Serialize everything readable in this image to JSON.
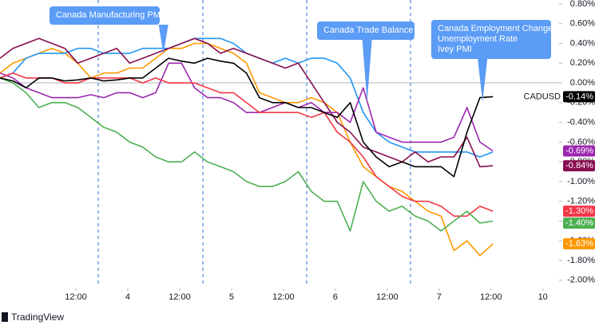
{
  "chart_data": {
    "type": "line",
    "ylim": [
      -2.05,
      0.84
    ],
    "yticks": [
      {
        "value": 0.8,
        "label": "0.80%"
      },
      {
        "value": 0.6,
        "label": "0.60%"
      },
      {
        "value": 0.4,
        "label": "0.40%"
      },
      {
        "value": 0.2,
        "label": "0.20%"
      },
      {
        "value": 0,
        "label": "0.00%"
      },
      {
        "value": -0.2,
        "label": "-0.20%"
      },
      {
        "value": -0.4,
        "label": "-0.40%"
      },
      {
        "value": -0.6,
        "label": "-0.60%"
      },
      {
        "value": -0.8,
        "label": "-0.80%"
      },
      {
        "value": -1,
        "label": "-1.00%"
      },
      {
        "value": -1.2,
        "label": "-1.20%"
      },
      {
        "value": -1.4,
        "label": "-1.40%"
      },
      {
        "value": -1.6,
        "label": "-1.60%"
      },
      {
        "value": -1.8,
        "label": "-1.80%"
      },
      {
        "value": -2,
        "label": "-2.00%"
      }
    ],
    "xlim": [
      0,
      43.1
    ],
    "xticks": [
      {
        "value": 5.85,
        "label": "12:00"
      },
      {
        "value": 9.85,
        "label": "4"
      },
      {
        "value": 13.85,
        "label": "12:00"
      },
      {
        "value": 17.85,
        "label": "5"
      },
      {
        "value": 21.85,
        "label": "12:00"
      },
      {
        "value": 25.85,
        "label": "6"
      },
      {
        "value": 29.85,
        "label": "12:00"
      },
      {
        "value": 33.85,
        "label": "7"
      },
      {
        "value": 37.85,
        "label": "12:00"
      },
      {
        "value": 41.85,
        "label": "10"
      }
    ],
    "annotations": [
      {
        "x": 12.6,
        "lines": [
          "Canada Manufacturing PMI"
        ]
      },
      {
        "x": 28.3,
        "lines": [
          "Canada Trade Balance"
        ]
      },
      {
        "x": 37.2,
        "lines": [
          "Canada Employment Change",
          "Unemployment Rate",
          "Ivey PMI"
        ]
      }
    ],
    "series": [
      {
        "color": "#ff9800",
        "end_label": "-1.63%",
        "values": [
          0.1,
          0.2,
          0.25,
          0.3,
          0.35,
          0.3,
          0.2,
          0.05,
          0.1,
          0.1,
          0.15,
          0.15,
          0.25,
          0.35,
          0.35,
          0.4,
          0.4,
          0.35,
          0.3,
          0.2,
          -0.1,
          -0.15,
          -0.2,
          -0.2,
          -0.15,
          -0.2,
          -0.3,
          -0.6,
          -0.85,
          -0.95,
          -1.05,
          -1.1,
          -1.2,
          -1.3,
          -1.35,
          -1.7,
          -1.6,
          -1.75,
          -1.63
        ]
      },
      {
        "color": "#2196f3",
        "values": [
          0.05,
          0.1,
          0.25,
          0.3,
          0.3,
          0.3,
          0.35,
          0.35,
          0.3,
          0.3,
          0.3,
          0.35,
          0.35,
          0.35,
          0.4,
          0.45,
          0.45,
          0.45,
          0.4,
          0.3,
          0.25,
          0.2,
          0.25,
          0.2,
          0.25,
          0.25,
          0.2,
          0.05,
          -0.3,
          -0.5,
          -0.6,
          -0.65,
          -0.7,
          -0.7,
          -0.7,
          -0.7,
          -0.7,
          -0.75,
          -0.7
        ]
      },
      {
        "color": "#880e4f",
        "end_label": "-0.84%",
        "values": [
          0.25,
          0.35,
          0.4,
          0.45,
          0.4,
          0.35,
          0.2,
          0.25,
          0.3,
          0.35,
          0.2,
          0.25,
          0.3,
          0.35,
          0.4,
          0.45,
          0.4,
          0.3,
          0.35,
          0.3,
          0.25,
          0.2,
          0.15,
          0.2,
          0.0,
          -0.2,
          -0.4,
          -0.5,
          -0.65,
          -0.7,
          -0.75,
          -0.8,
          -0.7,
          -0.8,
          -0.75,
          -0.75,
          -0.55,
          -0.85,
          -0.84
        ]
      },
      {
        "color": "#9c27b0",
        "end_label": "-0.69%",
        "values": [
          0.1,
          0.05,
          -0.05,
          -0.1,
          -0.15,
          -0.15,
          -0.15,
          -0.12,
          -0.15,
          -0.1,
          -0.1,
          -0.15,
          -0.1,
          0.2,
          0.2,
          -0.05,
          -0.15,
          -0.15,
          -0.2,
          -0.3,
          -0.3,
          -0.25,
          -0.2,
          -0.25,
          -0.2,
          -0.3,
          -0.3,
          -0.4,
          -0.05,
          -0.5,
          -0.55,
          -0.6,
          -0.6,
          -0.6,
          -0.6,
          -0.55,
          -0.25,
          -0.6,
          -0.69
        ]
      },
      {
        "color": "#f23645",
        "end_label": "-1.30%",
        "values": [
          0.05,
          0.1,
          0.05,
          0.05,
          0.05,
          0.0,
          0.0,
          0.05,
          0.05,
          0.05,
          0.05,
          0.0,
          0.05,
          0.0,
          0.0,
          0.0,
          -0.05,
          -0.1,
          -0.1,
          -0.2,
          -0.3,
          -0.3,
          -0.3,
          -0.3,
          -0.35,
          -0.3,
          -0.5,
          -0.6,
          -0.75,
          -0.95,
          -1.05,
          -1.15,
          -1.2,
          -1.2,
          -1.25,
          -1.35,
          -1.35,
          -1.25,
          -1.3
        ]
      },
      {
        "color": "#4caf50",
        "end_label": "-1.40%",
        "values": [
          0.05,
          0.0,
          -0.1,
          -0.25,
          -0.2,
          -0.2,
          -0.25,
          -0.35,
          -0.45,
          -0.5,
          -0.6,
          -0.65,
          -0.75,
          -0.8,
          -0.8,
          -0.7,
          -0.8,
          -0.85,
          -0.9,
          -1.0,
          -1.05,
          -1.05,
          -1.0,
          -0.9,
          -1.1,
          -1.2,
          -1.2,
          -1.5,
          -1.0,
          -1.2,
          -1.3,
          -1.25,
          -1.35,
          -1.4,
          -1.5,
          -1.4,
          -1.3,
          -1.42,
          -1.4
        ]
      },
      {
        "name": "CADUSD",
        "color": "#000000",
        "end_label": "-0.14%",
        "values": [
          0.05,
          0.02,
          -0.05,
          0.05,
          0.05,
          0.02,
          0.03,
          0.05,
          0.02,
          0.03,
          0.05,
          0.05,
          0.15,
          0.25,
          0.22,
          0.2,
          0.25,
          0.22,
          0.2,
          0.1,
          -0.15,
          -0.2,
          -0.2,
          -0.25,
          -0.25,
          -0.3,
          -0.35,
          -0.2,
          -0.6,
          -0.75,
          -0.85,
          -0.8,
          -0.85,
          -0.85,
          -0.85,
          -0.95,
          -0.5,
          -0.15,
          -0.14
        ]
      }
    ]
  },
  "brand": "TradingView"
}
